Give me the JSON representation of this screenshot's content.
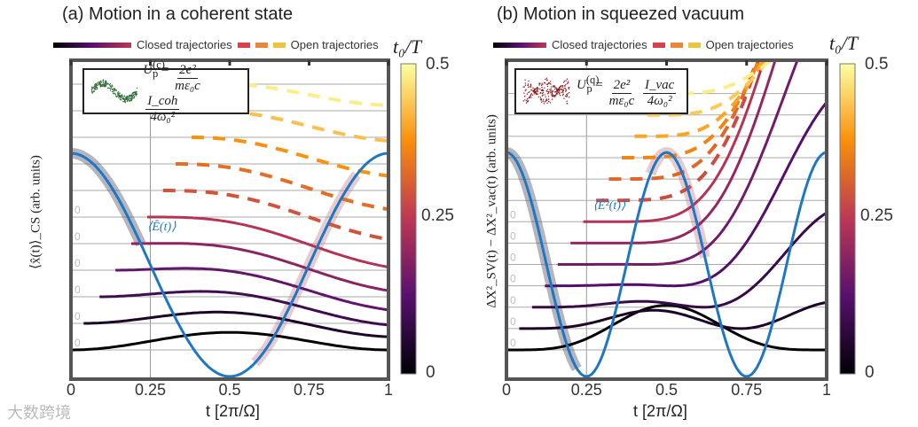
{
  "watermark": "大数跨境",
  "legend": {
    "closed": "Closed trajectories",
    "open": "Open trajectories"
  },
  "chart_data": [
    {
      "type": "line",
      "title": "(a) Motion in a coherent state",
      "xlabel": "t [2π/Ω]",
      "ylabel": "⟨x̂(t)⟩_CS (arb. units)",
      "xlim": [
        0,
        1
      ],
      "xticks": [
        "0",
        "0.25",
        "0.5",
        "0.75",
        "1"
      ],
      "colorbar": {
        "label": "t₀/T",
        "ticks": [
          "0.5",
          "0.25",
          "0"
        ],
        "range": [
          0,
          0.5
        ],
        "colormap": "inferno"
      },
      "field_label": "⟨Ê(t)⟩",
      "field": "cos",
      "field_color": "#1f77c4",
      "offset_label": "0",
      "inset": {
        "U": "U",
        "sub": "p",
        "sup": "(c)",
        "eq": "=",
        "num1": "2e²",
        "den1": "mε₀c",
        "num2": "I_coh",
        "den2": "4ω₀²",
        "icon_color": "#2e6b35"
      },
      "trajectories": [
        {
          "t0": 0.0,
          "type": "closed"
        },
        {
          "t0": 0.04,
          "type": "closed"
        },
        {
          "t0": 0.09,
          "type": "closed"
        },
        {
          "t0": 0.14,
          "type": "closed"
        },
        {
          "t0": 0.19,
          "type": "closed"
        },
        {
          "t0": 0.24,
          "type": "closed"
        },
        {
          "t0": 0.29,
          "type": "open"
        },
        {
          "t0": 0.33,
          "type": "open"
        },
        {
          "t0": 0.38,
          "type": "open"
        },
        {
          "t0": 0.43,
          "type": "open"
        },
        {
          "t0": 0.48,
          "type": "open"
        }
      ]
    },
    {
      "type": "line",
      "title": "(b) Motion in squeezed vacuum",
      "xlabel": "t [2π/Ω]",
      "ylabel": "ΔX²_SV(t) − ΔX²_vac(t) (arb. units)",
      "xlim": [
        0,
        1
      ],
      "xticks": [
        "0",
        "0.25",
        "0.5",
        "0.75",
        "1"
      ],
      "colorbar": {
        "label": "t₀/T",
        "ticks": [
          "0.5",
          "0.25",
          "0"
        ],
        "range": [
          0,
          0.5
        ],
        "colormap": "inferno"
      },
      "field_label": "⟨Ê²(t)⟩",
      "field": "cos2",
      "field_color": "#1f77c4",
      "offset_label": "0",
      "inset": {
        "U": "U",
        "sub": "p",
        "sup": "(q)",
        "eq": "=",
        "num1": "2e²",
        "den1": "mε₀c",
        "num2": "I_vac",
        "den2": "4ω₀²",
        "icon_color": "#8b1a1a"
      },
      "trajectories": [
        {
          "t0": 0.0,
          "type": "closed"
        },
        {
          "t0": 0.04,
          "type": "closed"
        },
        {
          "t0": 0.08,
          "type": "closed"
        },
        {
          "t0": 0.12,
          "type": "closed"
        },
        {
          "t0": 0.16,
          "type": "closed"
        },
        {
          "t0": 0.2,
          "type": "closed"
        },
        {
          "t0": 0.24,
          "type": "closed"
        },
        {
          "t0": 0.28,
          "type": "open"
        },
        {
          "t0": 0.32,
          "type": "open"
        },
        {
          "t0": 0.36,
          "type": "open"
        },
        {
          "t0": 0.4,
          "type": "open"
        },
        {
          "t0": 0.44,
          "type": "open"
        },
        {
          "t0": 0.48,
          "type": "open"
        }
      ]
    }
  ]
}
